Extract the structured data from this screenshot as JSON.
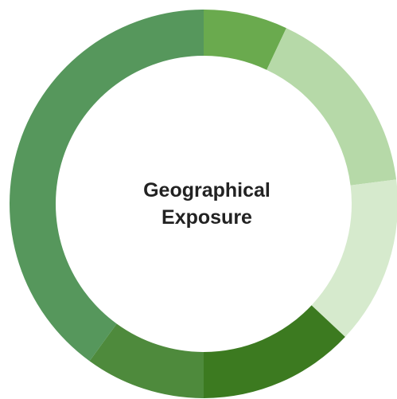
{
  "chart_data": {
    "type": "donut",
    "title": "Geographical Exposure",
    "values": [
      7,
      16,
      14,
      13,
      10,
      40
    ],
    "colors": [
      "#6aaa4e",
      "#b6d9a8",
      "#d6eacd",
      "#3c7a20",
      "#4e8a3c",
      "#56975c"
    ]
  }
}
